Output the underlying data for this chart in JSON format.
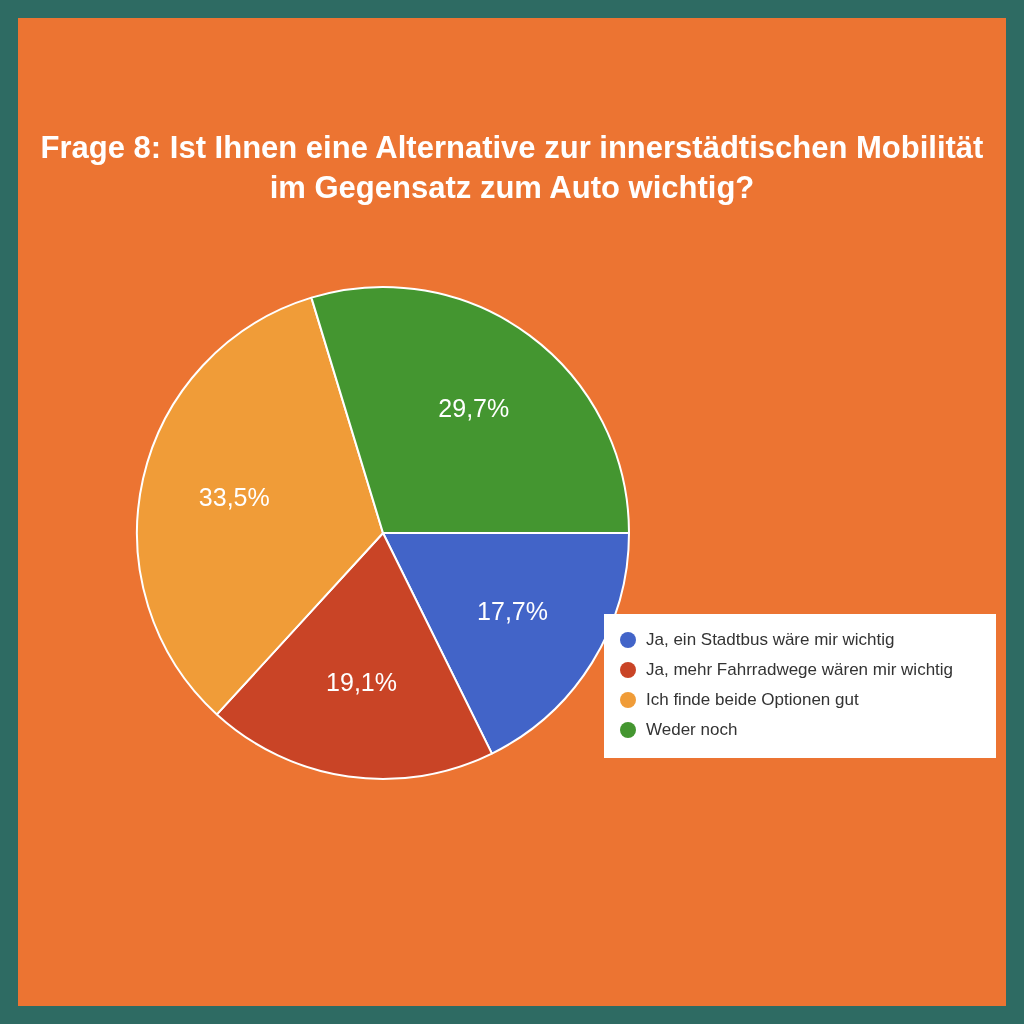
{
  "chart_data": {
    "type": "pie",
    "title": "Frage 8: Ist Ihnen eine Alternative zur innerstädtischen Mobilität im Gegensatz zum Auto wichtig?",
    "categories": [
      "Ja, ein Stadtbus wäre mir wichtig",
      "Ja, mehr Fahrradwege wären mir wichtig",
      "Ich finde beide Optionen gut",
      "Weder noch"
    ],
    "values": [
      17.7,
      19.1,
      33.5,
      29.7
    ],
    "colors": [
      "#4264c8",
      "#c94426",
      "#f09c38",
      "#449630"
    ],
    "value_labels": [
      "17,7%",
      "19,1%",
      "33,5%",
      "29,7%"
    ],
    "legend": "bottom right"
  }
}
